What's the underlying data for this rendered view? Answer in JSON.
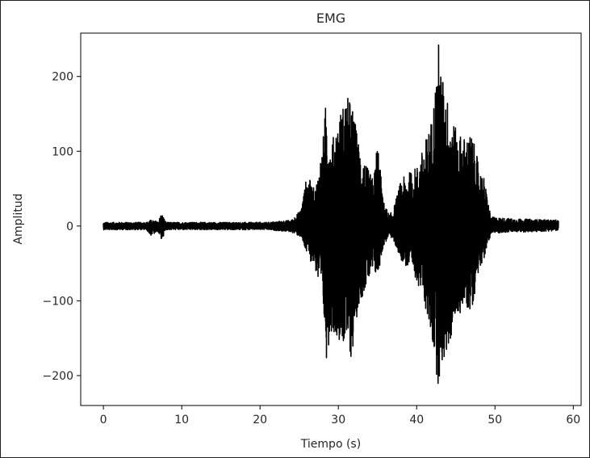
{
  "chart_data": {
    "type": "line",
    "title": "EMG",
    "xlabel": "Tiempo (s)",
    "ylabel": "Amplitud",
    "xlim": [
      -2.9,
      61.0
    ],
    "ylim": [
      -240,
      258
    ],
    "xticks": [
      0,
      10,
      20,
      30,
      40,
      50,
      60
    ],
    "yticks": [
      -200,
      -100,
      0,
      100,
      200
    ],
    "xtick_labels": [
      "0",
      "10",
      "20",
      "30",
      "40",
      "50",
      "60"
    ],
    "ytick_labels": [
      "−200",
      "−100",
      "0",
      "100",
      "200"
    ],
    "grid": false,
    "legend": "none",
    "series_color": "#000000",
    "series": [
      {
        "x_range": [
          0,
          58.1
        ],
        "envelope": {
          "x": [
            0,
            5.5,
            6.0,
            7.0,
            7.4,
            8.0,
            21.0,
            24.0,
            25.2,
            26.0,
            27.0,
            28.0,
            28.5,
            29.0,
            30.0,
            31.0,
            31.7,
            32.5,
            33.5,
            34.5,
            35.0,
            35.7,
            36.5,
            37.0,
            38.0,
            39.0,
            40.0,
            41.0,
            42.0,
            42.8,
            43.2,
            44.0,
            45.0,
            46.0,
            47.0,
            48.0,
            48.6,
            49.5,
            52.0,
            55.0,
            58.1
          ],
          "upper": [
            5,
            5,
            8,
            6,
            18,
            5,
            5,
            8,
            22,
            70,
            48,
            110,
            182,
            105,
            148,
            175,
            168,
            118,
            82,
            62,
            122,
            35,
            15,
            22,
            62,
            72,
            80,
            110,
            150,
            248,
            205,
            170,
            130,
            120,
            125,
            80,
            65,
            12,
            10,
            9,
            8
          ],
          "lower": [
            -5,
            -5,
            -13,
            -8,
            -20,
            -5,
            -5,
            -8,
            -15,
            -40,
            -55,
            -110,
            -180,
            -140,
            -150,
            -165,
            -180,
            -110,
            -82,
            -65,
            -70,
            -30,
            -12,
            -20,
            -45,
            -60,
            -72,
            -105,
            -160,
            -218,
            -190,
            -170,
            -125,
            -110,
            -115,
            -55,
            -45,
            -10,
            -8,
            -8,
            -6
          ]
        }
      }
    ]
  }
}
